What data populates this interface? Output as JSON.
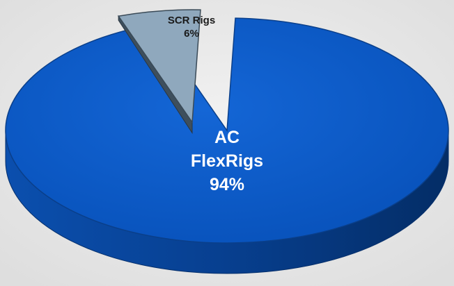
{
  "chart_data": {
    "type": "pie",
    "style": "3d-exploded",
    "slices": [
      {
        "label_lines": [
          "AC",
          "FlexRigs"
        ],
        "value": 94,
        "value_label": "94%",
        "color": "#0a5cc8",
        "exploded": false
      },
      {
        "label_lines": [
          "SCR Rigs"
        ],
        "value": 6,
        "value_label": "6%",
        "color": "#8fa8bd",
        "exploded": true
      }
    ],
    "legend": "none",
    "grid": false
  },
  "colors": {
    "background": "#e9e9e9",
    "major_slice_top": "#0a5cc8",
    "major_slice_side": "#063f8f",
    "minor_slice_top": "#8fa8bd",
    "minor_slice_side": "#3e4f5d",
    "major_label": "#ffffff",
    "minor_label": "#1a1a1a"
  }
}
